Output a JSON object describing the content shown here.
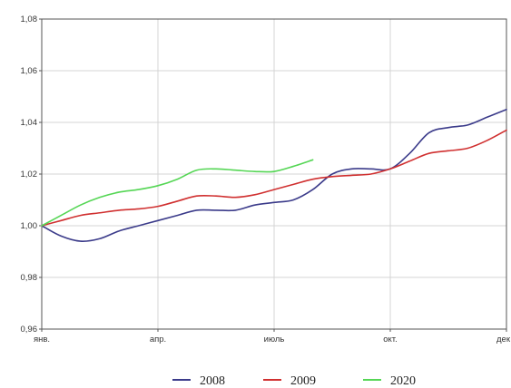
{
  "chart_data": {
    "type": "line",
    "title": "",
    "xlabel": "",
    "ylabel": "",
    "ylim": [
      0.96,
      1.08
    ],
    "xlim": [
      0,
      12
    ],
    "grid": true,
    "legend_position": "bottom",
    "x_ticks": [
      {
        "x": 0,
        "label": "янв."
      },
      {
        "x": 3,
        "label": "апр."
      },
      {
        "x": 6,
        "label": "июль"
      },
      {
        "x": 9,
        "label": "окт."
      },
      {
        "x": 12,
        "label": "дек"
      }
    ],
    "y_ticks": [
      {
        "y": 0.96,
        "label": "0,96"
      },
      {
        "y": 0.98,
        "label": "0,98"
      },
      {
        "y": 1.0,
        "label": "1,00"
      },
      {
        "y": 1.02,
        "label": "1,02"
      },
      {
        "y": 1.04,
        "label": "1,04"
      },
      {
        "y": 1.06,
        "label": "1,06"
      },
      {
        "y": 1.08,
        "label": "1,08"
      }
    ],
    "series": [
      {
        "name": "2008",
        "color": "#3b3b8a",
        "x": [
          0,
          0.5,
          1,
          1.5,
          2,
          2.5,
          3,
          3.5,
          4,
          4.5,
          5,
          5.5,
          6,
          6.5,
          7,
          7.5,
          8,
          8.5,
          9,
          9.5,
          10,
          10.5,
          11,
          11.5,
          12
        ],
        "y": [
          1.0,
          0.996,
          0.994,
          0.995,
          0.998,
          1.0,
          1.002,
          1.004,
          1.006,
          1.006,
          1.006,
          1.008,
          1.009,
          1.01,
          1.014,
          1.02,
          1.022,
          1.022,
          1.022,
          1.028,
          1.036,
          1.038,
          1.039,
          1.042,
          1.045
        ]
      },
      {
        "name": "2009",
        "color": "#d03030",
        "x": [
          0,
          0.5,
          1,
          1.5,
          2,
          2.5,
          3,
          3.5,
          4,
          4.5,
          5,
          5.5,
          6,
          6.5,
          7,
          7.5,
          8,
          8.5,
          9,
          9.5,
          10,
          10.5,
          11,
          11.5,
          12
        ],
        "y": [
          1.0,
          1.002,
          1.004,
          1.005,
          1.006,
          1.0065,
          1.0075,
          1.0095,
          1.0115,
          1.0115,
          1.011,
          1.012,
          1.014,
          1.016,
          1.018,
          1.019,
          1.0195,
          1.02,
          1.022,
          1.025,
          1.028,
          1.029,
          1.03,
          1.033,
          1.037
        ]
      },
      {
        "name": "2020",
        "color": "#55d655",
        "x": [
          0,
          0.5,
          1,
          1.5,
          2,
          2.5,
          3,
          3.5,
          4,
          4.5,
          5,
          5.5,
          6,
          6.5,
          7
        ],
        "y": [
          1.0,
          1.004,
          1.008,
          1.011,
          1.013,
          1.014,
          1.0155,
          1.018,
          1.0215,
          1.022,
          1.0215,
          1.021,
          1.021,
          1.023,
          1.0255
        ]
      }
    ]
  }
}
